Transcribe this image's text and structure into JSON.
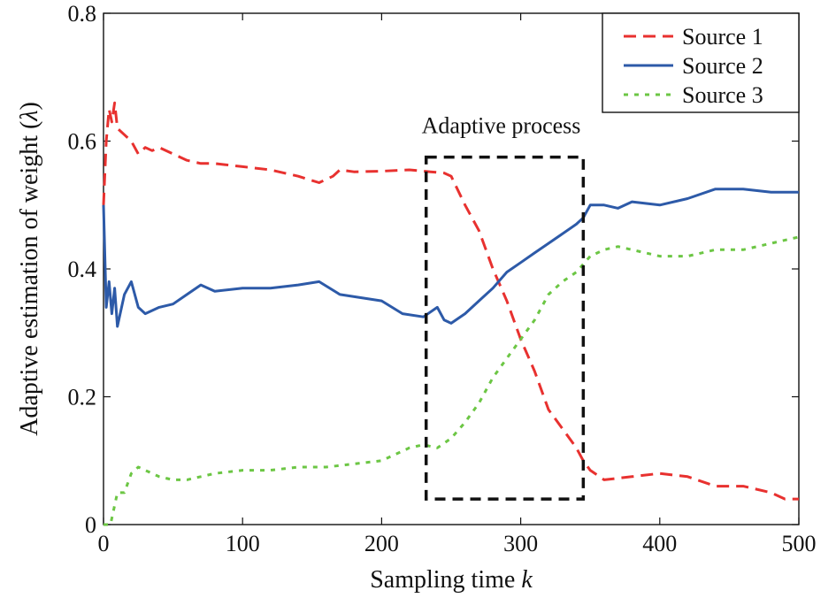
{
  "chart_data": {
    "type": "line",
    "xlabel": "Sampling time",
    "xlabel_var": "k",
    "ylabel": "Adaptive estimation of weight (",
    "ylabel_var": "λ",
    "ylabel_close": ")",
    "xlim": [
      0,
      500
    ],
    "ylim": [
      0,
      0.8
    ],
    "xticks": [
      0,
      100,
      200,
      300,
      400,
      500
    ],
    "xtick_labels": [
      "0",
      "100",
      "200",
      "300",
      "400",
      "500"
    ],
    "yticks": [
      0,
      0.2,
      0.4,
      0.6,
      0.8
    ],
    "ytick_labels": [
      "0",
      "0.2",
      "0.4",
      "0.6",
      "0.8"
    ],
    "grid": false,
    "legend_position": "top-right",
    "series": [
      {
        "name": "Source 1",
        "color": "#e8312f",
        "dash": "dashed",
        "points": [
          [
            0,
            0.5
          ],
          [
            2,
            0.6
          ],
          [
            4,
            0.65
          ],
          [
            6,
            0.63
          ],
          [
            8,
            0.66
          ],
          [
            10,
            0.62
          ],
          [
            15,
            0.61
          ],
          [
            20,
            0.6
          ],
          [
            25,
            0.58
          ],
          [
            30,
            0.59
          ],
          [
            35,
            0.585
          ],
          [
            40,
            0.59
          ],
          [
            50,
            0.58
          ],
          [
            60,
            0.57
          ],
          [
            70,
            0.565
          ],
          [
            80,
            0.565
          ],
          [
            100,
            0.56
          ],
          [
            120,
            0.555
          ],
          [
            140,
            0.545
          ],
          [
            155,
            0.535
          ],
          [
            165,
            0.545
          ],
          [
            170,
            0.555
          ],
          [
            180,
            0.552
          ],
          [
            200,
            0.553
          ],
          [
            220,
            0.555
          ],
          [
            235,
            0.552
          ],
          [
            245,
            0.55
          ],
          [
            250,
            0.545
          ],
          [
            260,
            0.5
          ],
          [
            270,
            0.46
          ],
          [
            280,
            0.4
          ],
          [
            290,
            0.35
          ],
          [
            300,
            0.29
          ],
          [
            310,
            0.24
          ],
          [
            320,
            0.18
          ],
          [
            330,
            0.15
          ],
          [
            340,
            0.12
          ],
          [
            345,
            0.1
          ],
          [
            350,
            0.085
          ],
          [
            360,
            0.07
          ],
          [
            380,
            0.075
          ],
          [
            400,
            0.08
          ],
          [
            420,
            0.075
          ],
          [
            440,
            0.06
          ],
          [
            460,
            0.06
          ],
          [
            480,
            0.05
          ],
          [
            490,
            0.04
          ],
          [
            500,
            0.04
          ]
        ]
      },
      {
        "name": "Source 2",
        "color": "#2d5aa8",
        "dash": "solid",
        "points": [
          [
            0,
            0.5
          ],
          [
            2,
            0.34
          ],
          [
            4,
            0.38
          ],
          [
            6,
            0.33
          ],
          [
            8,
            0.37
          ],
          [
            10,
            0.31
          ],
          [
            15,
            0.36
          ],
          [
            20,
            0.38
          ],
          [
            25,
            0.34
          ],
          [
            30,
            0.33
          ],
          [
            40,
            0.34
          ],
          [
            50,
            0.345
          ],
          [
            60,
            0.36
          ],
          [
            70,
            0.375
          ],
          [
            80,
            0.365
          ],
          [
            100,
            0.37
          ],
          [
            120,
            0.37
          ],
          [
            140,
            0.375
          ],
          [
            155,
            0.38
          ],
          [
            170,
            0.36
          ],
          [
            185,
            0.355
          ],
          [
            200,
            0.35
          ],
          [
            215,
            0.33
          ],
          [
            230,
            0.325
          ],
          [
            240,
            0.34
          ],
          [
            245,
            0.32
          ],
          [
            250,
            0.315
          ],
          [
            260,
            0.33
          ],
          [
            270,
            0.35
          ],
          [
            280,
            0.37
          ],
          [
            290,
            0.395
          ],
          [
            300,
            0.41
          ],
          [
            310,
            0.425
          ],
          [
            320,
            0.44
          ],
          [
            330,
            0.455
          ],
          [
            340,
            0.47
          ],
          [
            345,
            0.48
          ],
          [
            350,
            0.5
          ],
          [
            360,
            0.5
          ],
          [
            370,
            0.495
          ],
          [
            380,
            0.505
          ],
          [
            400,
            0.5
          ],
          [
            420,
            0.51
          ],
          [
            440,
            0.525
          ],
          [
            460,
            0.525
          ],
          [
            480,
            0.52
          ],
          [
            500,
            0.52
          ]
        ]
      },
      {
        "name": "Source 3",
        "color": "#6cc644",
        "dash": "dotted",
        "points": [
          [
            0,
            0.0
          ],
          [
            5,
            0.0
          ],
          [
            10,
            0.05
          ],
          [
            15,
            0.05
          ],
          [
            20,
            0.08
          ],
          [
            25,
            0.09
          ],
          [
            30,
            0.085
          ],
          [
            40,
            0.075
          ],
          [
            50,
            0.07
          ],
          [
            60,
            0.07
          ],
          [
            70,
            0.075
          ],
          [
            80,
            0.08
          ],
          [
            100,
            0.085
          ],
          [
            120,
            0.085
          ],
          [
            140,
            0.09
          ],
          [
            160,
            0.09
          ],
          [
            180,
            0.095
          ],
          [
            200,
            0.1
          ],
          [
            210,
            0.11
          ],
          [
            220,
            0.12
          ],
          [
            230,
            0.125
          ],
          [
            240,
            0.12
          ],
          [
            250,
            0.135
          ],
          [
            260,
            0.16
          ],
          [
            270,
            0.19
          ],
          [
            280,
            0.23
          ],
          [
            290,
            0.26
          ],
          [
            300,
            0.29
          ],
          [
            310,
            0.32
          ],
          [
            320,
            0.36
          ],
          [
            330,
            0.38
          ],
          [
            340,
            0.395
          ],
          [
            350,
            0.42
          ],
          [
            360,
            0.43
          ],
          [
            370,
            0.435
          ],
          [
            380,
            0.43
          ],
          [
            400,
            0.42
          ],
          [
            420,
            0.42
          ],
          [
            440,
            0.43
          ],
          [
            460,
            0.43
          ],
          [
            480,
            0.44
          ],
          [
            500,
            0.45
          ]
        ]
      }
    ],
    "annotations": [
      {
        "text": "Adaptive process",
        "box_x": [
          232,
          345
        ],
        "box_y": [
          0.04,
          0.575
        ]
      }
    ]
  }
}
